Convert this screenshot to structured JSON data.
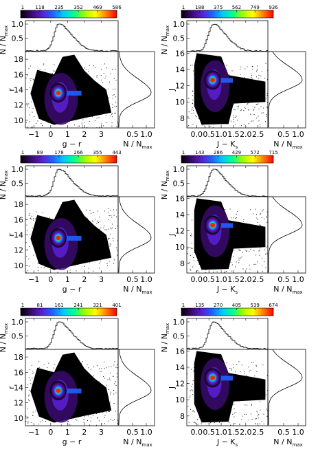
{
  "figure": {
    "type": "scatter",
    "colormap": [
      "#000000",
      "#3a0a6e",
      "#5a1fd0",
      "#2060ff",
      "#00c8ff",
      "#00ff90",
      "#a0ff00",
      "#ffff00",
      "#ff8000",
      "#ff0000"
    ],
    "fill_color": "#000000"
  },
  "chart_data": [
    {
      "type": "scatter",
      "panel": "row1-left",
      "colorbar_ticks": [
        "1",
        "118",
        "235",
        "352",
        "469",
        "586"
      ],
      "xlabel": "g − r",
      "ylabel": "r",
      "hist_ylabel": "N / N",
      "hist_ylabel_sub": "max",
      "hist_xlabel": "N / N",
      "hist_xlabel_sub": "max",
      "xlim": [
        -1.5,
        4.0
      ],
      "ylim": [
        9.0,
        19.0
      ],
      "x_ticks": [
        "−1",
        "0",
        "1",
        "2",
        "3"
      ],
      "y_ticks": [
        "10",
        "12",
        "14",
        "16",
        "18"
      ],
      "hist_ticks": [
        "0.5",
        "1.0"
      ],
      "side_ticks": [
        "0.5",
        "1.0"
      ],
      "peak": {
        "x": 0.45,
        "y": 13.6
      }
    },
    {
      "type": "scatter",
      "panel": "row1-right",
      "colorbar_ticks": [
        "1",
        "188",
        "375",
        "562",
        "749",
        "936"
      ],
      "xlabel": "J − K",
      "xlabel_sub": "s",
      "ylabel": "J",
      "hist_ylabel": "N / N",
      "hist_ylabel_sub": "max",
      "hist_xlabel": "N / N",
      "hist_xlabel_sub": "max",
      "xlim": [
        -0.4,
        2.9
      ],
      "ylim": [
        6.8,
        16.2
      ],
      "x_ticks": [
        "0.0",
        "0.5",
        "1.0",
        "1.5",
        "2.0",
        "2.5"
      ],
      "y_ticks": [
        "8",
        "10",
        "12",
        "14",
        "16"
      ],
      "hist_ticks": [
        "0.5",
        "1.0"
      ],
      "side_ticks": [
        "0.5",
        "1.0"
      ],
      "peak": {
        "x": 0.65,
        "y": 12.7
      }
    },
    {
      "type": "scatter",
      "panel": "row2-left",
      "colorbar_ticks": [
        "1",
        "89",
        "178",
        "266",
        "355",
        "443"
      ],
      "xlabel": "g − r",
      "ylabel": "r",
      "hist_ylabel": "N / N",
      "hist_ylabel_sub": "max",
      "hist_xlabel": "N / N",
      "hist_xlabel_sub": "max",
      "xlim": [
        -1.5,
        4.0
      ],
      "ylim": [
        9.0,
        19.0
      ],
      "x_ticks": [
        "−1",
        "0",
        "1",
        "2",
        "3"
      ],
      "y_ticks": [
        "10",
        "12",
        "14",
        "16",
        "18"
      ],
      "hist_ticks": [
        "0.5",
        "1.0"
      ],
      "side_ticks": [
        "0.5",
        "1.0"
      ],
      "peak": {
        "x": 0.45,
        "y": 13.6
      }
    },
    {
      "type": "scatter",
      "panel": "row2-right",
      "colorbar_ticks": [
        "1",
        "143",
        "286",
        "429",
        "572",
        "715"
      ],
      "xlabel": "J − K",
      "xlabel_sub": "s",
      "ylabel": "J",
      "hist_ylabel": "N / N",
      "hist_ylabel_sub": "max",
      "hist_xlabel": "N / N",
      "hist_xlabel_sub": "max",
      "xlim": [
        -0.4,
        2.9
      ],
      "ylim": [
        6.8,
        16.2
      ],
      "x_ticks": [
        "0.0",
        "0.5",
        "1.0",
        "1.5",
        "2.0",
        "2.5"
      ],
      "y_ticks": [
        "8",
        "10",
        "12",
        "14",
        "16"
      ],
      "hist_ticks": [
        "0.5",
        "1.0"
      ],
      "side_ticks": [
        "0.5",
        "1.0"
      ],
      "peak": {
        "x": 0.65,
        "y": 12.7
      }
    },
    {
      "type": "scatter",
      "panel": "row3-left",
      "colorbar_ticks": [
        "1",
        "81",
        "161",
        "241",
        "321",
        "401"
      ],
      "xlabel": "g − r",
      "ylabel": "r",
      "hist_ylabel": "N / N",
      "hist_ylabel_sub": "max",
      "hist_xlabel": "N / N",
      "hist_xlabel_sub": "max",
      "xlim": [
        -1.5,
        4.0
      ],
      "ylim": [
        9.0,
        19.0
      ],
      "x_ticks": [
        "−1",
        "0",
        "1",
        "2",
        "3"
      ],
      "y_ticks": [
        "10",
        "12",
        "14",
        "16",
        "18"
      ],
      "hist_ticks": [
        "0.5",
        "1.0"
      ],
      "side_ticks": [
        "0.5",
        "1.0"
      ],
      "peak": {
        "x": 0.45,
        "y": 13.6
      }
    },
    {
      "type": "scatter",
      "panel": "row3-right",
      "colorbar_ticks": [
        "1",
        "135",
        "270",
        "405",
        "539",
        "674"
      ],
      "xlabel": "J − K",
      "xlabel_sub": "s",
      "ylabel": "J",
      "hist_ylabel": "N / N",
      "hist_ylabel_sub": "max",
      "hist_xlabel": "N / N",
      "hist_xlabel_sub": "max",
      "xlim": [
        -0.4,
        2.9
      ],
      "ylim": [
        6.8,
        16.2
      ],
      "x_ticks": [
        "0.0",
        "0.5",
        "1.0",
        "1.5",
        "2.0",
        "2.5"
      ],
      "y_ticks": [
        "8",
        "10",
        "12",
        "14",
        "16"
      ],
      "hist_ticks": [
        "0.5",
        "1.0"
      ],
      "side_ticks": [
        "0.5",
        "1.0"
      ],
      "peak": {
        "x": 0.65,
        "y": 12.7
      }
    }
  ]
}
